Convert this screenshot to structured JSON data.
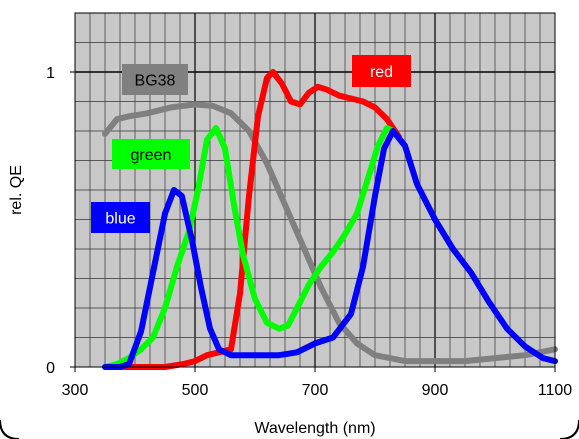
{
  "chart_data": {
    "type": "line",
    "xlabel": "Wavelength (nm)",
    "ylabel": "rel. QE",
    "xlim": [
      300,
      1100
    ],
    "ylim": [
      0,
      1.2
    ],
    "x_ticks": [
      300,
      500,
      700,
      900,
      1100
    ],
    "y_ticks": [
      0,
      1
    ],
    "x_tick_labels": [
      "300",
      "500",
      "700",
      "900",
      "1100"
    ],
    "y_tick_labels": [
      "0",
      "1"
    ],
    "grid": true,
    "background": "#c8c8c8",
    "series": [
      {
        "name": "BG38",
        "color": "#808080",
        "points": [
          [
            350,
            0.79
          ],
          [
            370,
            0.84
          ],
          [
            390,
            0.85
          ],
          [
            420,
            0.86
          ],
          [
            460,
            0.88
          ],
          [
            500,
            0.89
          ],
          [
            530,
            0.885
          ],
          [
            560,
            0.86
          ],
          [
            590,
            0.8
          ],
          [
            620,
            0.69
          ],
          [
            650,
            0.55
          ],
          [
            680,
            0.41
          ],
          [
            710,
            0.27
          ],
          [
            740,
            0.15
          ],
          [
            770,
            0.08
          ],
          [
            800,
            0.04
          ],
          [
            850,
            0.02
          ],
          [
            900,
            0.02
          ],
          [
            950,
            0.02
          ],
          [
            1000,
            0.03
          ],
          [
            1050,
            0.04
          ],
          [
            1100,
            0.06
          ]
        ]
      },
      {
        "name": "red",
        "color": "#ff0000",
        "points": [
          [
            350,
            0.0
          ],
          [
            400,
            0.0
          ],
          [
            450,
            0.0
          ],
          [
            480,
            0.01
          ],
          [
            500,
            0.02
          ],
          [
            520,
            0.04
          ],
          [
            540,
            0.05
          ],
          [
            560,
            0.06
          ],
          [
            575,
            0.25
          ],
          [
            590,
            0.58
          ],
          [
            605,
            0.85
          ],
          [
            620,
            0.98
          ],
          [
            630,
            1.0
          ],
          [
            645,
            0.96
          ],
          [
            660,
            0.9
          ],
          [
            675,
            0.89
          ],
          [
            690,
            0.93
          ],
          [
            705,
            0.95
          ],
          [
            720,
            0.94
          ],
          [
            740,
            0.92
          ],
          [
            760,
            0.91
          ],
          [
            780,
            0.9
          ],
          [
            800,
            0.88
          ],
          [
            820,
            0.84
          ],
          [
            840,
            0.78
          ]
        ]
      },
      {
        "name": "green",
        "color": "#00ff00",
        "points": [
          [
            350,
            0.0
          ],
          [
            370,
            0.01
          ],
          [
            390,
            0.03
          ],
          [
            410,
            0.06
          ],
          [
            430,
            0.1
          ],
          [
            450,
            0.2
          ],
          [
            470,
            0.34
          ],
          [
            490,
            0.46
          ],
          [
            505,
            0.6
          ],
          [
            520,
            0.77
          ],
          [
            535,
            0.81
          ],
          [
            550,
            0.74
          ],
          [
            565,
            0.55
          ],
          [
            580,
            0.38
          ],
          [
            600,
            0.23
          ],
          [
            620,
            0.15
          ],
          [
            640,
            0.13
          ],
          [
            655,
            0.14
          ],
          [
            670,
            0.2
          ],
          [
            690,
            0.28
          ],
          [
            710,
            0.34
          ],
          [
            730,
            0.39
          ],
          [
            750,
            0.45
          ],
          [
            770,
            0.52
          ],
          [
            790,
            0.65
          ],
          [
            805,
            0.75
          ],
          [
            820,
            0.81
          ],
          [
            830,
            0.8
          ]
        ]
      },
      {
        "name": "blue",
        "color": "#0000ff",
        "points": [
          [
            350,
            0.0
          ],
          [
            375,
            0.0
          ],
          [
            390,
            0.01
          ],
          [
            410,
            0.12
          ],
          [
            430,
            0.32
          ],
          [
            450,
            0.52
          ],
          [
            465,
            0.6
          ],
          [
            478,
            0.58
          ],
          [
            495,
            0.43
          ],
          [
            510,
            0.27
          ],
          [
            525,
            0.13
          ],
          [
            540,
            0.06
          ],
          [
            560,
            0.04
          ],
          [
            600,
            0.04
          ],
          [
            640,
            0.04
          ],
          [
            670,
            0.05
          ],
          [
            700,
            0.08
          ],
          [
            730,
            0.1
          ],
          [
            760,
            0.18
          ],
          [
            780,
            0.34
          ],
          [
            800,
            0.58
          ],
          [
            815,
            0.74
          ],
          [
            830,
            0.8
          ],
          [
            850,
            0.75
          ],
          [
            870,
            0.62
          ],
          [
            900,
            0.5
          ],
          [
            930,
            0.4
          ],
          [
            960,
            0.32
          ],
          [
            990,
            0.22
          ],
          [
            1020,
            0.13
          ],
          [
            1050,
            0.07
          ],
          [
            1080,
            0.03
          ],
          [
            1100,
            0.02
          ]
        ]
      }
    ],
    "legend_labels": [
      {
        "text": "BG38",
        "series": "BG38",
        "text_color": "#000000",
        "box_color": "#808080"
      },
      {
        "text": "red",
        "series": "red",
        "text_color": "#ffffff",
        "box_color": "#ff0000"
      },
      {
        "text": "green",
        "series": "green",
        "text_color": "#000000",
        "box_color": "#00ff00"
      },
      {
        "text": "blue",
        "series": "blue",
        "text_color": "#ffffff",
        "box_color": "#0000ff"
      }
    ]
  }
}
